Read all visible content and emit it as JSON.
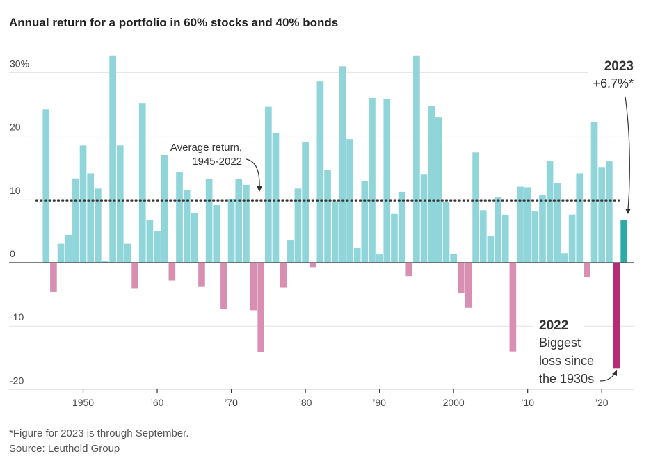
{
  "chart_data": {
    "type": "bar",
    "title": "Annual return for a portfolio in 60% stocks and 40% bonds",
    "xlabel": "",
    "ylabel": "",
    "ylim": [
      -20,
      30
    ],
    "xlim": [
      1940,
      2024.3
    ],
    "grid": true,
    "y_ticks": [
      {
        "value": 30,
        "label": "30%"
      },
      {
        "value": 20,
        "label": "20"
      },
      {
        "value": 10,
        "label": "10"
      },
      {
        "value": 0,
        "label": "0"
      },
      {
        "value": -10,
        "label": "-10"
      },
      {
        "value": -20,
        "label": "-20"
      }
    ],
    "x_ticks": [
      {
        "value": 1950,
        "label": "1950"
      },
      {
        "value": 1960,
        "label": "’60"
      },
      {
        "value": 1970,
        "label": "’70"
      },
      {
        "value": 1980,
        "label": "’80"
      },
      {
        "value": 1990,
        "label": "’90"
      },
      {
        "value": 2000,
        "label": "2000"
      },
      {
        "value": 2010,
        "label": "’10"
      },
      {
        "value": 2020,
        "label": "’20"
      }
    ],
    "start_year": 1945,
    "values": [
      24.2,
      -4.6,
      3.0,
      4.4,
      13.3,
      18.5,
      14.1,
      11.7,
      0.3,
      32.7,
      18.5,
      3.0,
      -4.1,
      25.2,
      6.7,
      5.0,
      17.0,
      -2.8,
      14.3,
      11.5,
      7.8,
      -3.8,
      13.2,
      9.1,
      -7.3,
      10.0,
      13.2,
      12.3,
      -7.5,
      -14.1,
      24.6,
      20.4,
      -3.9,
      3.5,
      11.7,
      19.0,
      -0.7,
      28.6,
      14.6,
      9.7,
      31.0,
      19.5,
      2.3,
      12.9,
      26.0,
      1.3,
      25.8,
      7.7,
      11.2,
      -2.1,
      32.7,
      13.9,
      24.7,
      22.9,
      9.6,
      1.4,
      -4.8,
      -7.1,
      17.4,
      8.3,
      4.2,
      10.3,
      7.5,
      -14.0,
      12.0,
      11.9,
      8.1,
      10.7,
      16.0,
      12.5,
      1.5,
      7.6,
      14.1,
      -2.3,
      22.2,
      15.1,
      16.0,
      -16.7,
      6.7
    ],
    "average": {
      "value": 9.8,
      "label_line1": "Average return,",
      "label_line2": "1945-2022"
    },
    "annotations": {
      "y2023": {
        "year": "2023",
        "value_label": "+6.7%*"
      },
      "y2022": {
        "year": "2022",
        "line1": "Biggest",
        "line2": "loss since",
        "line3": "the 1930s"
      }
    },
    "colors": {
      "positive": "#8fd5d9",
      "negative": "#d98fb2",
      "highlight_2023": "#2fa8a8",
      "highlight_2022": "#b52b76",
      "grid": "#e3e3e3",
      "zero": "#555555"
    }
  },
  "footnote": "*Figure for 2023 is through September.",
  "source": "Source: Leuthold Group"
}
